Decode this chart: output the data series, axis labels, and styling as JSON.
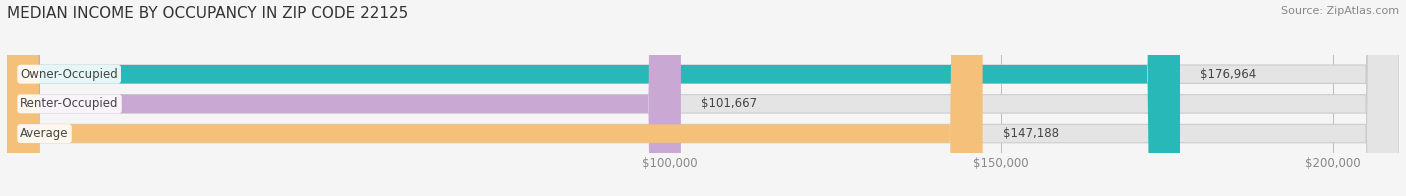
{
  "title": "MEDIAN INCOME BY OCCUPANCY IN ZIP CODE 22125",
  "source": "Source: ZipAtlas.com",
  "categories": [
    "Owner-Occupied",
    "Renter-Occupied",
    "Average"
  ],
  "values": [
    176964,
    101667,
    147188
  ],
  "labels": [
    "$176,964",
    "$101,667",
    "$147,188"
  ],
  "bar_colors": [
    "#29b8b8",
    "#c9a8d4",
    "#f5c07a"
  ],
  "xmin": 0,
  "xmax": 210000,
  "xticks": [
    100000,
    150000,
    200000
  ],
  "xticklabels": [
    "$100,000",
    "$150,000",
    "$200,000"
  ],
  "bg_color": "#f5f5f5",
  "bar_bg_color": "#e4e4e4",
  "title_fontsize": 11,
  "source_fontsize": 8,
  "label_fontsize": 8.5,
  "tick_fontsize": 8.5,
  "bar_height": 0.62
}
